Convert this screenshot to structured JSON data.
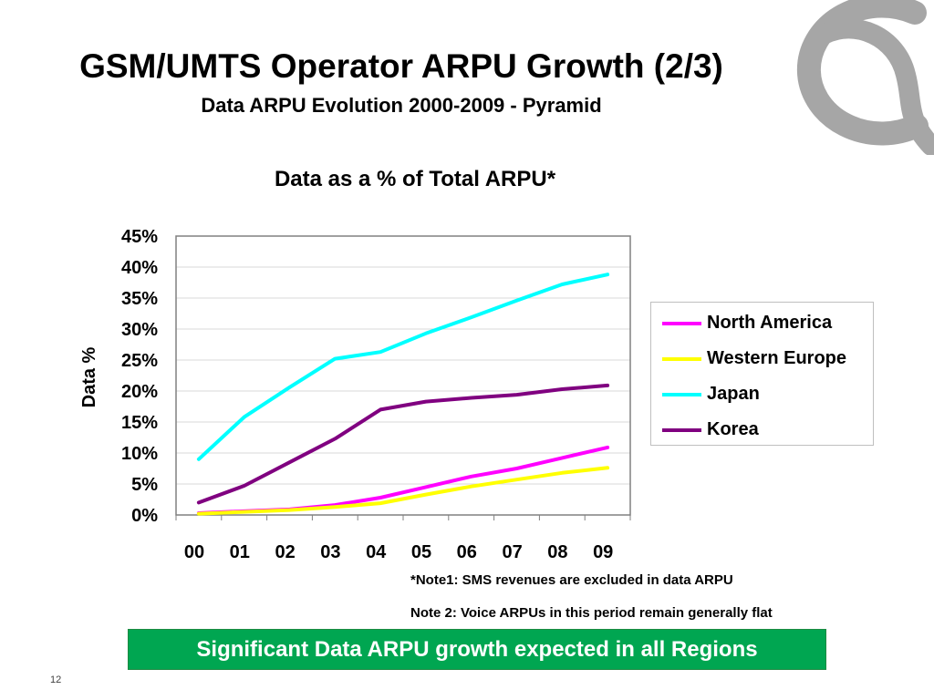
{
  "slide": {
    "title": "GSM/UMTS Operator ARPU Growth (2/3)",
    "subtitle": "Data ARPU Evolution 2000-2009 - Pyramid",
    "page_number": "12"
  },
  "notes": {
    "note1": "*Note1: SMS revenues are excluded in data ARPU",
    "note2": "Note 2: Voice ARPUs in this period remain generally flat"
  },
  "banner": {
    "text": "Significant Data ARPU growth expected in all Regions",
    "color": "#00a651"
  },
  "logo": {
    "icon": "globe-logo-icon",
    "color": "#a6a6a6"
  },
  "chart_data": {
    "type": "line",
    "title": "Data as a % of Total ARPU*",
    "xlabel": "",
    "ylabel": "Data %",
    "categories": [
      "00",
      "01",
      "02",
      "03",
      "04",
      "05",
      "06",
      "07",
      "08",
      "09"
    ],
    "y_ticks": [
      "0%",
      "5%",
      "10%",
      "15%",
      "20%",
      "25%",
      "30%",
      "35%",
      "40%",
      "45%"
    ],
    "ylim": [
      0,
      45
    ],
    "grid": "horizontal",
    "legend_position": "right",
    "series": [
      {
        "name": "North America",
        "color": "#ff00ff",
        "values": [
          0.3,
          0.6,
          0.9,
          1.6,
          2.8,
          4.5,
          6.2,
          7.5,
          9.2,
          10.9
        ]
      },
      {
        "name": "Western Europe",
        "color": "#ffff00",
        "values": [
          0.2,
          0.5,
          0.8,
          1.3,
          1.9,
          3.3,
          4.6,
          5.7,
          6.8,
          7.6
        ]
      },
      {
        "name": "Japan",
        "color": "#00ffff",
        "values": [
          9.0,
          15.8,
          20.6,
          25.2,
          26.3,
          29.3,
          31.9,
          34.6,
          37.2,
          38.8
        ]
      },
      {
        "name": "Korea",
        "color": "#800080",
        "values": [
          2.0,
          4.7,
          8.5,
          12.3,
          17.0,
          18.3,
          18.9,
          19.4,
          20.3,
          20.9
        ]
      }
    ]
  }
}
